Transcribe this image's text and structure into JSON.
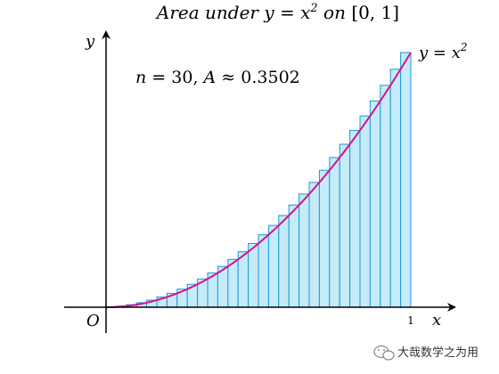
{
  "chart_data": {
    "type": "bar",
    "title": "Area under y = x² on [0,1]",
    "annotation": "n = 30, A ≈ 0.3502",
    "curve_label": "y = x²",
    "xlabel": "x",
    "ylabel": "y",
    "origin_label": "O",
    "x_tick_label": "1",
    "n": 30,
    "area": 0.3502,
    "xlim": [
      0,
      1
    ],
    "ylim": [
      0,
      1
    ],
    "function": "x^2",
    "rectangle_rule": "right-endpoint",
    "bar_fill_color": "#c5ebf8",
    "bar_edge_color": "#1a9ad6",
    "curve_color": "#d4148c",
    "values": [
      0.0011,
      0.0044,
      0.01,
      0.0178,
      0.0278,
      0.04,
      0.0544,
      0.0711,
      0.09,
      0.1111,
      0.1344,
      0.16,
      0.1878,
      0.2178,
      0.25,
      0.2844,
      0.3211,
      0.36,
      0.4011,
      0.4444,
      0.49,
      0.5378,
      0.5878,
      0.64,
      0.6944,
      0.7511,
      0.81,
      0.8711,
      0.9344,
      1.0
    ]
  },
  "watermark": {
    "text": "大哉数学之为用",
    "icon": "wechat-icon"
  }
}
